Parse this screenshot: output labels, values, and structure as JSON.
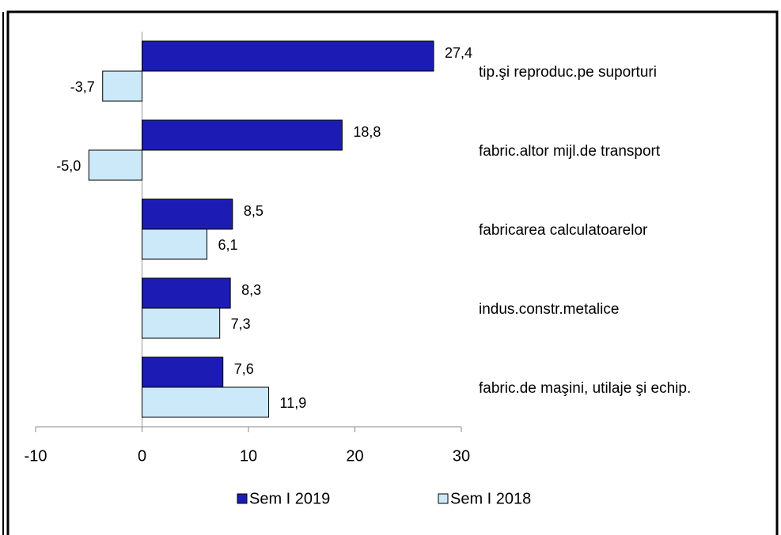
{
  "chart_data": {
    "type": "bar",
    "orientation": "horizontal",
    "categories": [
      "tip.şi reproduc.pe suporturi",
      "fabric.altor mijl.de transport",
      "fabricarea calculatoarelor",
      "indus.constr.metalice",
      "fabric.de maşini, utilaje şi echip."
    ],
    "series": [
      {
        "name": "Sem I 2019",
        "color": "#1c1cb4",
        "values": [
          27.4,
          18.8,
          8.5,
          8.3,
          7.6
        ],
        "value_labels": [
          "27,4",
          "18,8",
          "8,5",
          "8,3",
          "7,6"
        ]
      },
      {
        "name": "Sem I 2018",
        "color": "#cce9f9",
        "values": [
          -3.7,
          -5.0,
          6.1,
          7.3,
          11.9
        ],
        "value_labels": [
          "-3,7",
          "-5,0",
          "6,1",
          "7,3",
          "11,9"
        ]
      }
    ],
    "xlim": [
      -10,
      30
    ],
    "xticks": [
      -10,
      0,
      10,
      20,
      30
    ],
    "legend": "bottom"
  }
}
